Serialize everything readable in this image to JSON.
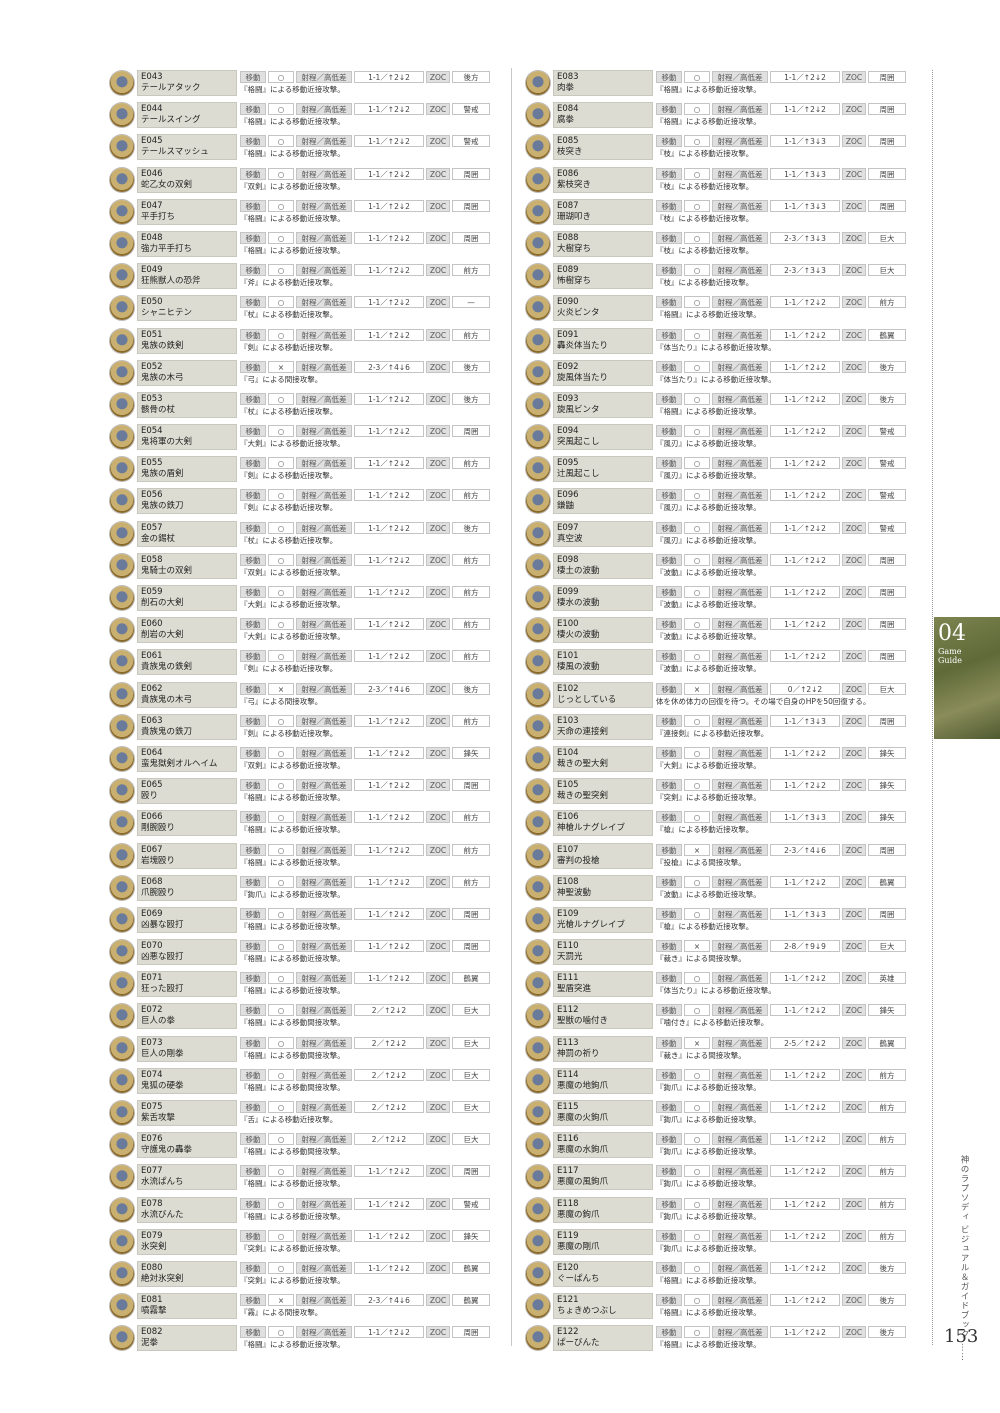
{
  "labels": {
    "move": "移動",
    "range": "射程／高低差",
    "zoc": "ZOC"
  },
  "side_tab": {
    "number": "04",
    "line1": "Game",
    "line2": "Guide"
  },
  "book_title": "神のラプソディ ビジュアル＆ガイドブック ……",
  "page_number": "153",
  "left_entries": [
    [
      "E043",
      "テールアタック",
      "○",
      "1-1／↑2↓2",
      "後方",
      "『格闘』による移動近接攻撃。"
    ],
    [
      "E044",
      "テールスイング",
      "○",
      "1-1／↑2↓2",
      "警戒",
      "『格闘』による移動近接攻撃。"
    ],
    [
      "E045",
      "テールスマッシュ",
      "○",
      "1-1／↑2↓2",
      "警戒",
      "『格闘』による移動近接攻撃。"
    ],
    [
      "E046",
      "蛇乙女の双剣",
      "○",
      "1-1／↑2↓2",
      "周囲",
      "『双剣』による移動近接攻撃。"
    ],
    [
      "E047",
      "平手打ち",
      "○",
      "1-1／↑2↓2",
      "周囲",
      "『格闘』による移動近接攻撃。"
    ],
    [
      "E048",
      "強力平手打ち",
      "○",
      "1-1／↑2↓2",
      "周囲",
      "『格闘』による移動近接攻撃。"
    ],
    [
      "E049",
      "狂熊獣人の恐斧",
      "○",
      "1-1／↑2↓2",
      "前方",
      "『斧』による移動近接攻撃。"
    ],
    [
      "E050",
      "シャニヒテン",
      "○",
      "1-1／↑2↓2",
      "—",
      "『杖』による移動近接攻撃。"
    ],
    [
      "E051",
      "鬼族の鉄剣",
      "○",
      "1-1／↑2↓2",
      "前方",
      "『剣』による移動近接攻撃。"
    ],
    [
      "E052",
      "鬼族の木弓",
      "×",
      "2-3／↑4↓6",
      "後方",
      "『弓』による間接攻撃。"
    ],
    [
      "E053",
      "骸骨の杖",
      "○",
      "1-1／↑2↓2",
      "後方",
      "『杖』による移動近接攻撃。"
    ],
    [
      "E054",
      "鬼将軍の大剣",
      "○",
      "1-1／↑2↓2",
      "周囲",
      "『大剣』による移動近接攻撃。"
    ],
    [
      "E055",
      "鬼族の盾剣",
      "○",
      "1-1／↑2↓2",
      "前方",
      "『剣』による移動近接攻撃。"
    ],
    [
      "E056",
      "鬼族の鉄刀",
      "○",
      "1-1／↑2↓2",
      "前方",
      "『剣』による移動近接攻撃。"
    ],
    [
      "E057",
      "金の錫杖",
      "○",
      "1-1／↑2↓2",
      "後方",
      "『杖』による移動近接攻撃。"
    ],
    [
      "E058",
      "鬼騎士の双剣",
      "○",
      "1-1／↑2↓2",
      "前方",
      "『双剣』による移動近接攻撃。"
    ],
    [
      "E059",
      "削石の大剣",
      "○",
      "1-1／↑2↓2",
      "前方",
      "『大剣』による移動近接攻撃。"
    ],
    [
      "E060",
      "削岩の大剣",
      "○",
      "1-1／↑2↓2",
      "前方",
      "『大剣』による移動近接攻撃。"
    ],
    [
      "E061",
      "貴族鬼の鉄剣",
      "○",
      "1-1／↑2↓2",
      "前方",
      "『剣』による移動近接攻撃。"
    ],
    [
      "E062",
      "貴族鬼の木弓",
      "×",
      "2-3／↑4↓6",
      "後方",
      "『弓』による間接攻撃。"
    ],
    [
      "E063",
      "貴族鬼の鉄刀",
      "○",
      "1-1／↑2↓2",
      "前方",
      "『剣』による移動近接攻撃。"
    ],
    [
      "E064",
      "蛮鬼獄剣オルヘイム",
      "○",
      "1-1／↑2↓2",
      "鋒矢",
      "『双剣』による移動近接攻撃。"
    ],
    [
      "E065",
      "殴り",
      "○",
      "1-1／↑2↓2",
      "周囲",
      "『格闘』による移動近接攻撃。"
    ],
    [
      "E066",
      "剛腕殴り",
      "○",
      "1-1／↑2↓2",
      "前方",
      "『格闘』による移動近接攻撃。"
    ],
    [
      "E067",
      "岩塊殴り",
      "○",
      "1-1／↑2↓2",
      "前方",
      "『格闘』による移動近接攻撃。"
    ],
    [
      "E068",
      "爪腕殴り",
      "○",
      "1-1／↑2↓2",
      "前方",
      "『鉤爪』による移動近接攻撃。"
    ],
    [
      "E069",
      "凶暴な殴打",
      "○",
      "1-1／↑2↓2",
      "周囲",
      "『格闘』による移動近接攻撃。"
    ],
    [
      "E070",
      "凶悪な殴打",
      "○",
      "1-1／↑2↓2",
      "周囲",
      "『格闘』による移動近接攻撃。"
    ],
    [
      "E071",
      "狂った殴打",
      "○",
      "1-1／↑2↓2",
      "鶴翼",
      "『格闘』による移動近接攻撃。"
    ],
    [
      "E072",
      "巨人の拳",
      "○",
      "2／↑2↓2",
      "巨大",
      "『格闘』による移動間接攻撃。"
    ],
    [
      "E073",
      "巨人の剛拳",
      "○",
      "2／↑2↓2",
      "巨大",
      "『格闘』による移動間接攻撃。"
    ],
    [
      "E074",
      "鬼狐の硬拳",
      "○",
      "2／↑2↓2",
      "巨大",
      "『格闘』による移動間接攻撃。"
    ],
    [
      "E075",
      "紫舌攻撃",
      "○",
      "2／↑2↓2",
      "巨大",
      "『舌』による移動近接攻撃。"
    ],
    [
      "E076",
      "守護鬼の轟拳",
      "○",
      "2／↑2↓2",
      "巨大",
      "『格闘』による移動間接攻撃。"
    ],
    [
      "E077",
      "水流ぱんち",
      "○",
      "1-1／↑2↓2",
      "周囲",
      "『格闘』による移動近接攻撃。"
    ],
    [
      "E078",
      "水流びんた",
      "○",
      "1-1／↑2↓2",
      "警戒",
      "『格闘』による移動近接攻撃。"
    ],
    [
      "E079",
      "氷突剣",
      "○",
      "1-1／↑2↓2",
      "鋒矢",
      "『突剣』による移動近接攻撃。"
    ],
    [
      "E080",
      "絶対氷突剣",
      "○",
      "1-1／↑2↓2",
      "鶴翼",
      "『突剣』による移動近接攻撃。"
    ],
    [
      "E081",
      "噴霧撃",
      "×",
      "2-3／↑4↓6",
      "鶴翼",
      "『霧』による間接攻撃。"
    ],
    [
      "E082",
      "泥拳",
      "○",
      "1-1／↑2↓2",
      "周囲",
      "『格闘』による移動近接攻撃。"
    ]
  ],
  "right_entries": [
    [
      "E083",
      "肉拳",
      "○",
      "1-1／↑2↓2",
      "周囲",
      "『格闘』による移動近接攻撃。"
    ],
    [
      "E084",
      "腐拳",
      "○",
      "1-1／↑2↓2",
      "周囲",
      "『格闘』による移動近接攻撃。"
    ],
    [
      "E085",
      "枝突き",
      "○",
      "1-1／↑3↓3",
      "周囲",
      "『枝』による移動近接攻撃。"
    ],
    [
      "E086",
      "紫枝突き",
      "○",
      "1-1／↑3↓3",
      "周囲",
      "『枝』による移動近接攻撃。"
    ],
    [
      "E087",
      "珊瑚叩き",
      "○",
      "1-1／↑3↓3",
      "周囲",
      "『枝』による移動近接攻撃。"
    ],
    [
      "E088",
      "大樹穿ち",
      "○",
      "2-3／↑3↓3",
      "巨大",
      "『枝』による移動近接攻撃。"
    ],
    [
      "E089",
      "怖樹穿ち",
      "○",
      "2-3／↑3↓3",
      "巨大",
      "『枝』による移動近接攻撃。"
    ],
    [
      "E090",
      "火炎ビンタ",
      "○",
      "1-1／↑2↓2",
      "前方",
      "『格闘』による移動近接攻撃。"
    ],
    [
      "E091",
      "轟炎体当たり",
      "○",
      "1-1／↑2↓2",
      "鶴翼",
      "『体当たり』による移動近接攻撃。"
    ],
    [
      "E092",
      "旋風体当たり",
      "○",
      "1-1／↑2↓2",
      "後方",
      "『体当たり』による移動近接攻撃。"
    ],
    [
      "E093",
      "旋風ビンタ",
      "○",
      "1-1／↑2↓2",
      "後方",
      "『格闘』による移動近接攻撃。"
    ],
    [
      "E094",
      "突風起こし",
      "○",
      "1-1／↑2↓2",
      "警戒",
      "『風刃』による移動近接攻撃。"
    ],
    [
      "E095",
      "辻風起こし",
      "○",
      "1-1／↑2↓2",
      "警戒",
      "『風刃』による移動近接攻撃。"
    ],
    [
      "E096",
      "鎌鼬",
      "○",
      "1-1／↑2↓2",
      "警戒",
      "『風刃』による移動近接攻撃。"
    ],
    [
      "E097",
      "真空波",
      "○",
      "1-1／↑2↓2",
      "警戒",
      "『風刃』による移動近接攻撃。"
    ],
    [
      "E098",
      "棲土の波動",
      "○",
      "1-1／↑2↓2",
      "周囲",
      "『波動』による移動近接攻撃。"
    ],
    [
      "E099",
      "棲水の波動",
      "○",
      "1-1／↑2↓2",
      "周囲",
      "『波動』による移動近接攻撃。"
    ],
    [
      "E100",
      "棲火の波動",
      "○",
      "1-1／↑2↓2",
      "周囲",
      "『波動』による移動近接攻撃。"
    ],
    [
      "E101",
      "棲風の波動",
      "○",
      "1-1／↑2↓2",
      "周囲",
      "『波動』による移動近接攻撃。"
    ],
    [
      "E102",
      "じっとしている",
      "×",
      "0／↑2↓2",
      "巨大",
      "体を休め体力の回復を待つ。その場で自身のHPを50回復する。"
    ],
    [
      "E103",
      "天命の連接剣",
      "○",
      "1-1／↑3↓3",
      "周囲",
      "『連接剣』による移動近接攻撃。"
    ],
    [
      "E104",
      "裁きの聖大剣",
      "○",
      "1-1／↑2↓2",
      "鋒矢",
      "『大剣』による移動近接攻撃。"
    ],
    [
      "E105",
      "裁きの聖突剣",
      "○",
      "1-1／↑2↓2",
      "鋒矢",
      "『突剣』による移動近接攻撃。"
    ],
    [
      "E106",
      "神槍ルナグレイブ",
      "○",
      "1-1／↑3↓3",
      "鋒矢",
      "『槍』による移動近接攻撃。"
    ],
    [
      "E107",
      "審判の投槍",
      "×",
      "2-3／↑4↓6",
      "周囲",
      "『投槍』による間接攻撃。"
    ],
    [
      "E108",
      "神聖波動",
      "○",
      "1-1／↑2↓2",
      "鶴翼",
      "『波動』による移動近接攻撃。"
    ],
    [
      "E109",
      "光槍ルナグレイブ",
      "○",
      "1-1／↑3↓3",
      "周囲",
      "『槍』による移動近接攻撃。"
    ],
    [
      "E110",
      "天罰光",
      "×",
      "2-8／↑9↓9",
      "巨大",
      "『裁き』による間接攻撃。"
    ],
    [
      "E111",
      "聖盾突進",
      "○",
      "1-1／↑2↓2",
      "英雄",
      "『体当たり』による移動近接攻撃。"
    ],
    [
      "E112",
      "聖獣の噛付き",
      "○",
      "1-1／↑2↓2",
      "鋒矢",
      "『噛付き』による移動近接攻撃。"
    ],
    [
      "E113",
      "神罰の祈り",
      "×",
      "2-5／↑2↓2",
      "鶴翼",
      "『裁き』による間接攻撃。"
    ],
    [
      "E114",
      "悪魔の地鉤爪",
      "○",
      "1-1／↑2↓2",
      "前方",
      "『鉤爪』による移動近接攻撃。"
    ],
    [
      "E115",
      "悪魔の火鉤爪",
      "○",
      "1-1／↑2↓2",
      "前方",
      "『鉤爪』による移動近接攻撃。"
    ],
    [
      "E116",
      "悪魔の水鉤爪",
      "○",
      "1-1／↑2↓2",
      "前方",
      "『鉤爪』による移動近接攻撃。"
    ],
    [
      "E117",
      "悪魔の風鉤爪",
      "○",
      "1-1／↑2↓2",
      "前方",
      "『鉤爪』による移動近接攻撃。"
    ],
    [
      "E118",
      "悪魔の鉤爪",
      "○",
      "1-1／↑2↓2",
      "前方",
      "『鉤爪』による移動近接攻撃。"
    ],
    [
      "E119",
      "悪魔の剛爪",
      "○",
      "1-1／↑2↓2",
      "前方",
      "『鉤爪』による移動近接攻撃。"
    ],
    [
      "E120",
      "ぐーぱんち",
      "○",
      "1-1／↑2↓2",
      "後方",
      "『格闘』による移動近接攻撃。"
    ],
    [
      "E121",
      "ちょきめつぶし",
      "○",
      "1-1／↑2↓2",
      "後方",
      "『格闘』による移動近接攻撃。"
    ],
    [
      "E122",
      "ぱーびんた",
      "○",
      "1-1／↑2↓2",
      "後方",
      "『格闘』による移動近接攻撃。"
    ]
  ]
}
